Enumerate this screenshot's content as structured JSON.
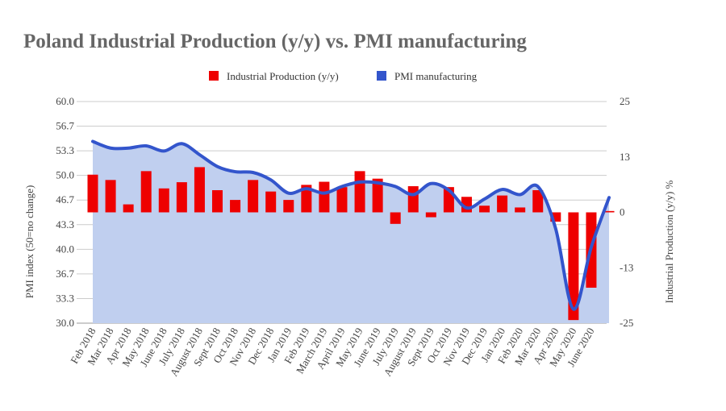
{
  "chart_data": {
    "type": "bar+area",
    "title": "Poland Industrial Production (y/y) vs. PMI manufacturing",
    "legend": {
      "position": "top",
      "entries": [
        "Industrial Production (y/y)",
        "PMI manufacturing"
      ]
    },
    "categories": [
      "Feb 2018",
      "Mar 2018",
      "Apr 2018",
      "May 2018",
      "June 2018",
      "July 2018",
      "August 2018",
      "Sept 2018",
      "Oct 2018",
      "Nov 2018",
      "Dec 2018",
      "Jan 2019",
      "Feb 2019",
      "March 2019",
      "April 2019",
      "May 2019",
      "June 2019",
      "July 2019",
      "August 2019",
      "Sept 2019",
      "Oct 2019",
      "Nov 2019",
      "Dec 2019",
      "Jan 2020",
      "Feb 2020",
      "Mar 2020",
      "Apr 2020",
      "May 2020",
      "June 2020",
      ""
    ],
    "series": [
      {
        "name": "Industrial Production (y/y)",
        "axis": "right",
        "type": "bar",
        "color": "#ee0000",
        "values": [
          8.5,
          7.3,
          1.8,
          9.3,
          5.4,
          6.8,
          10.2,
          5.0,
          2.8,
          7.3,
          4.7,
          2.8,
          6.2,
          6.9,
          5.7,
          9.3,
          7.6,
          -2.6,
          5.9,
          -1.1,
          5.7,
          3.5,
          1.5,
          3.8,
          1.1,
          5.0,
          -2.1,
          -24.3,
          -17.0,
          0.3
        ]
      },
      {
        "name": "PMI manufacturing",
        "axis": "left",
        "type": "area",
        "color": "#3355cc",
        "fill": "#c0cfef",
        "values": [
          54.6,
          53.7,
          53.7,
          54.0,
          53.3,
          54.3,
          52.8,
          51.2,
          50.5,
          50.4,
          49.4,
          47.6,
          48.2,
          47.6,
          48.5,
          49.1,
          49.0,
          48.5,
          47.4,
          48.9,
          48.0,
          45.6,
          46.8,
          48.1,
          47.4,
          48.5,
          42.8,
          31.9,
          40.3,
          47.0
        ]
      }
    ],
    "left_axis": {
      "label": "PMI index (50=no change)",
      "range": [
        30,
        60
      ],
      "ticks": [
        "60.0",
        "56.7",
        "53.3",
        "50.0",
        "46.7",
        "43.3",
        "40.0",
        "36.7",
        "33.3",
        "30.0"
      ]
    },
    "right_axis": {
      "label": "Industrial Production (y/y) %",
      "range": [
        -25,
        25
      ],
      "ticks": [
        "25",
        "13",
        "0",
        "-13",
        "-25"
      ]
    },
    "grid": true
  }
}
